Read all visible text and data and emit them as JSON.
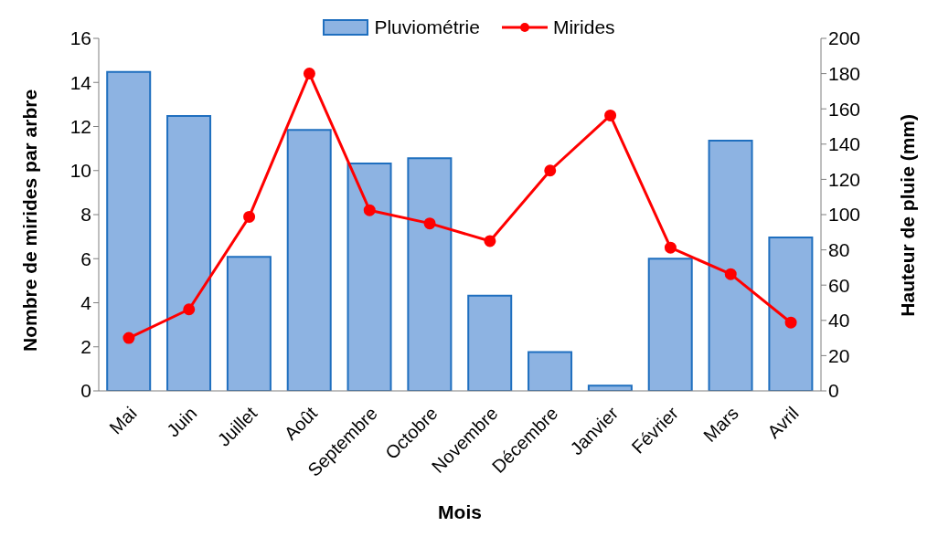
{
  "chart_data": {
    "type": "bar",
    "xlabel": "Mois",
    "ylabel": "Nombre de mirides par arbre",
    "y2label": "Hauteur de pluie (mm)",
    "categories": [
      "Mai",
      "Juin",
      "Juillet",
      "Août",
      "Septembre",
      "Octobre",
      "Novembre",
      "Décembre",
      "Janvier",
      "Février",
      "Mars",
      "Avril"
    ],
    "series": [
      {
        "name": "Pluviométrie",
        "axis": "y2",
        "color": "#8db3e2",
        "values": [
          181,
          156,
          76,
          148,
          129,
          132,
          54,
          22,
          3,
          75,
          142,
          87
        ]
      },
      {
        "name": "Mirides",
        "type": "line",
        "color": "#ff0000",
        "marker": "circle",
        "values": [
          2.4,
          3.7,
          7.9,
          14.4,
          8.2,
          7.6,
          6.8,
          10,
          12.5,
          6.5,
          5.3,
          3.1
        ]
      }
    ],
    "ylim": [
      0,
      16
    ],
    "yticks": [
      0,
      2,
      4,
      6,
      8,
      10,
      12,
      14,
      16
    ],
    "y2lim": [
      0,
      200
    ],
    "y2ticks": [
      0,
      20,
      40,
      60,
      80,
      100,
      120,
      140,
      160,
      180,
      200
    ],
    "legend": "top",
    "grid": false
  }
}
